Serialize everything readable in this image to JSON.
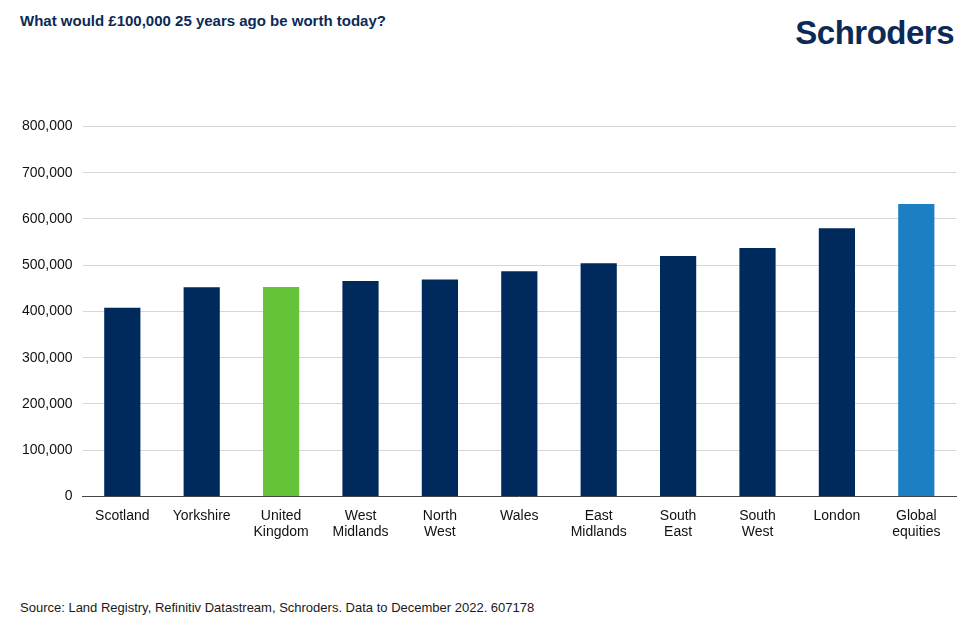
{
  "chart_data": {
    "type": "bar",
    "title": "What would £100,000 25 years ago be worth today?",
    "logo": "Schroders",
    "source": "Source: Land Registry, Refinitiv Datastream, Schroders. Data to December 2022. 607178",
    "categories": [
      "Scotland",
      "Yorkshire",
      "United Kingdom",
      "West Midlands",
      "North West",
      "Wales",
      "East Midlands",
      "South East",
      "South West",
      "London",
      "Global equities"
    ],
    "values": [
      408000,
      452000,
      453000,
      466000,
      469000,
      487000,
      504000,
      520000,
      537000,
      580000,
      632000
    ],
    "colors": [
      "#002a5c",
      "#002a5c",
      "#66c43a",
      "#002a5c",
      "#002a5c",
      "#002a5c",
      "#002a5c",
      "#002a5c",
      "#002a5c",
      "#002a5c",
      "#1d7fc3"
    ],
    "ylim": [
      0,
      800000
    ],
    "yticks": [
      0,
      {
        "value": 100000,
        "label": "100,000"
      },
      {
        "value": 200000,
        "label": "200,000"
      },
      {
        "value": 300000,
        "label": "300,000"
      },
      {
        "value": 400000,
        "label": "400,000"
      },
      {
        "value": 500000,
        "label": "500,000"
      },
      {
        "value": 600000,
        "label": "600,000"
      },
      {
        "value": 700000,
        "label": "700,000"
      },
      {
        "value": 800000,
        "label": "800,000"
      }
    ],
    "grid": true
  }
}
